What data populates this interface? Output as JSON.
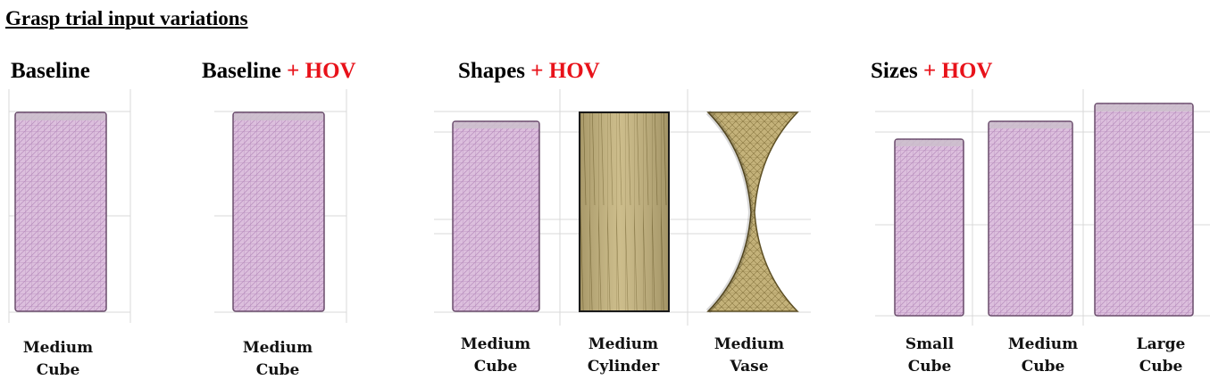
{
  "title": "Grasp trial input variations",
  "colors": {
    "accent": "#e8121a",
    "cube_fill": "#dcbfdd",
    "cube_mesh": "#b78dbd",
    "gold_fill": "#c4b27a",
    "gold_dark": "#8f7d45"
  },
  "panels": {
    "baseline": {
      "title": "Baseline",
      "suffix": "",
      "items": [
        {
          "line1": "Medium",
          "line2": "Cube"
        }
      ]
    },
    "baseline_hov": {
      "title": "Baseline",
      "suffix": "+ HOV",
      "items": [
        {
          "line1": "Medium",
          "line2": "Cube"
        }
      ]
    },
    "shapes_hov": {
      "title": "Shapes",
      "suffix": "+ HOV",
      "items": [
        {
          "line1": "Medium",
          "line2": "Cube"
        },
        {
          "line1": "Medium",
          "line2": "Cylinder"
        },
        {
          "line1": "Medium",
          "line2": "Vase"
        }
      ]
    },
    "sizes_hov": {
      "title": "Sizes",
      "suffix": "+ HOV",
      "items": [
        {
          "line1": "Small",
          "line2": "Cube"
        },
        {
          "line1": "Medium",
          "line2": "Cube"
        },
        {
          "line1": "Large",
          "line2": "Cube"
        }
      ]
    }
  }
}
